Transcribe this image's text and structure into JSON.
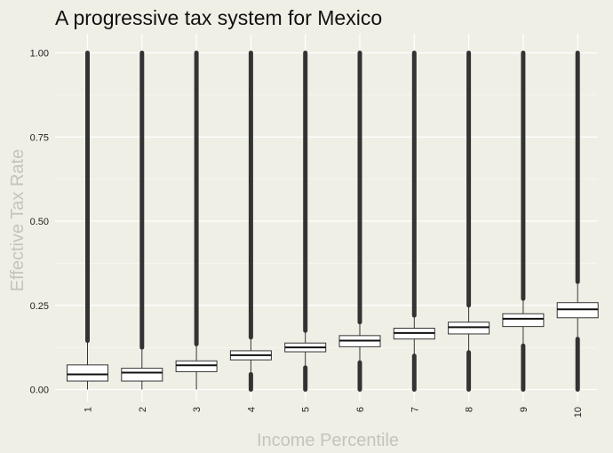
{
  "chart_data": {
    "type": "box",
    "title": "A progressive tax system for Mexico",
    "xlabel": "Income Percentile",
    "ylabel": "Effective Tax Rate",
    "categories": [
      "1",
      "2",
      "3",
      "4",
      "5",
      "6",
      "7",
      "8",
      "9",
      "10"
    ],
    "yticks": [
      "0.00",
      "0.25",
      "0.50",
      "0.75",
      "1.00"
    ],
    "ylim": [
      -0.03,
      1.04
    ],
    "grid": true,
    "colors": {
      "background": "#f0efe6",
      "grid": "#ffffff",
      "box_fill": "#ffffff",
      "box_stroke": "#333333",
      "outliers": "#333333"
    },
    "boxes": [
      {
        "category": "1",
        "q1": 0.025,
        "median": 0.045,
        "q3": 0.073,
        "whisker_low": 0.0,
        "whisker_high": 0.145,
        "outliers_low": null,
        "outliers_high": [
          0.145,
          1.0
        ]
      },
      {
        "category": "2",
        "q1": 0.025,
        "median": 0.05,
        "q3": 0.063,
        "whisker_low": 0.0,
        "whisker_high": 0.125,
        "outliers_low": null,
        "outliers_high": [
          0.125,
          1.0
        ]
      },
      {
        "category": "3",
        "q1": 0.053,
        "median": 0.072,
        "q3": 0.085,
        "whisker_low": 0.0,
        "whisker_high": 0.135,
        "outliers_low": null,
        "outliers_high": [
          0.135,
          1.0
        ]
      },
      {
        "category": "4",
        "q1": 0.088,
        "median": 0.102,
        "q3": 0.115,
        "whisker_low": 0.05,
        "whisker_high": 0.155,
        "outliers_low": [
          0.0,
          0.045
        ],
        "outliers_high": [
          0.155,
          1.0
        ]
      },
      {
        "category": "5",
        "q1": 0.112,
        "median": 0.125,
        "q3": 0.138,
        "whisker_low": 0.07,
        "whisker_high": 0.175,
        "outliers_low": [
          0.0,
          0.065
        ],
        "outliers_high": [
          0.175,
          1.0
        ]
      },
      {
        "category": "6",
        "q1": 0.127,
        "median": 0.145,
        "q3": 0.16,
        "whisker_low": 0.08,
        "whisker_high": 0.2,
        "outliers_low": [
          0.0,
          0.08
        ],
        "outliers_high": [
          0.2,
          1.0
        ]
      },
      {
        "category": "7",
        "q1": 0.15,
        "median": 0.168,
        "q3": 0.182,
        "whisker_low": 0.1,
        "whisker_high": 0.22,
        "outliers_low": [
          0.0,
          0.1
        ],
        "outliers_high": [
          0.22,
          1.0
        ]
      },
      {
        "category": "8",
        "q1": 0.165,
        "median": 0.185,
        "q3": 0.2,
        "whisker_low": 0.11,
        "whisker_high": 0.25,
        "outliers_low": [
          0.0,
          0.11
        ],
        "outliers_high": [
          0.25,
          1.0
        ]
      },
      {
        "category": "9",
        "q1": 0.187,
        "median": 0.21,
        "q3": 0.225,
        "whisker_low": 0.13,
        "whisker_high": 0.27,
        "outliers_low": [
          0.0,
          0.13
        ],
        "outliers_high": [
          0.27,
          1.0
        ]
      },
      {
        "category": "10",
        "q1": 0.213,
        "median": 0.238,
        "q3": 0.258,
        "whisker_low": 0.15,
        "whisker_high": 0.32,
        "outliers_low": [
          0.0,
          0.15
        ],
        "outliers_high": [
          0.32,
          1.0
        ]
      }
    ]
  }
}
